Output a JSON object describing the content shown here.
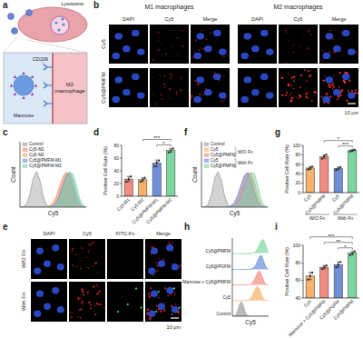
{
  "schematic": {
    "panel": "a",
    "lysosome": "Lysosome",
    "receptor": "CD206",
    "ligand": "Mannose",
    "cell": [
      "M2",
      "macrophage"
    ]
  },
  "images_b": {
    "panel": "b",
    "groups": [
      "M1 macrophages",
      "M2 macrophages"
    ],
    "channels": [
      "DAPI",
      "Cy5",
      "Merge"
    ],
    "rows": [
      "Cy5",
      "Cy5@PMFM"
    ],
    "scale_bar": "10 μm"
  },
  "images_e": {
    "panel": "e",
    "channels": [
      "DAPI",
      "Cy5",
      "FITC-Fn",
      "Merge"
    ],
    "rows": [
      "W/O Fn",
      "With Fn"
    ],
    "scale_bar": "10 μm"
  },
  "chart_data": [
    {
      "panel": "c",
      "type": "area",
      "xlabel": "Cy5",
      "ylabel": "Count",
      "x": [
        0,
        0.5,
        1,
        1.5,
        2,
        2.5,
        3,
        3.5,
        4,
        4.5,
        5,
        5.5,
        6,
        6.5,
        7,
        7.5,
        8,
        8.5,
        9,
        9.5,
        10
      ],
      "xlim": [
        0,
        10
      ],
      "ylim": [
        0,
        180
      ],
      "xticks": [],
      "yticks": [],
      "tick_labels": false,
      "legend": "upper left",
      "series": [
        {
          "name": "Control",
          "color": "#9e9e9e",
          "values": [
            0,
            1,
            8,
            35,
            80,
            98,
            75,
            30,
            6,
            1,
            0,
            0,
            0,
            0,
            0,
            0,
            0,
            0,
            0,
            0,
            0
          ]
        },
        {
          "name": "Cy5-M1",
          "color": "#f28b82",
          "values": [
            0,
            0,
            0,
            0,
            0,
            0,
            0,
            0,
            1,
            4,
            12,
            30,
            58,
            85,
            96,
            80,
            45,
            15,
            3,
            0,
            0
          ]
        },
        {
          "name": "Cy5-M2",
          "color": "#f6b26b",
          "values": [
            0,
            0,
            0,
            0,
            0,
            0,
            0,
            0,
            0,
            2,
            8,
            22,
            48,
            78,
            95,
            88,
            58,
            24,
            6,
            1,
            0
          ]
        },
        {
          "name": "Cy5@PMFM-M1",
          "color": "#6f8fd8",
          "values": [
            0,
            0,
            0,
            0,
            0,
            0,
            0,
            0,
            0,
            1,
            4,
            14,
            34,
            62,
            88,
            97,
            75,
            38,
            12,
            2,
            0
          ]
        },
        {
          "name": "Cy5@PMFM-M2",
          "color": "#7cd6a0",
          "values": [
            0,
            0,
            0,
            0,
            0,
            0,
            0,
            0,
            0,
            0,
            2,
            8,
            22,
            46,
            74,
            94,
            92,
            60,
            24,
            5,
            0
          ]
        }
      ]
    },
    {
      "panel": "d",
      "type": "bar",
      "ylabel": "Positive Cell Rate (%)",
      "categories": [
        "Cy5-M1",
        "Cy5-M2",
        "Cy5@PMFM-M1",
        "Cy5@PMFM-M2"
      ],
      "values": [
        27,
        26,
        52,
        72
      ],
      "errors": [
        4,
        3,
        5,
        3
      ],
      "points": [
        [
          23,
          27,
          31
        ],
        [
          23,
          26,
          29
        ],
        [
          47,
          53,
          56
        ],
        [
          69,
          72,
          75
        ]
      ],
      "colors": [
        "#f28b82",
        "#f6b26b",
        "#6f8fd8",
        "#7cd6a0"
      ],
      "ylim": [
        0,
        80
      ],
      "yticks": [
        0,
        20,
        40,
        60,
        80
      ],
      "annotations": [
        {
          "text": "*",
          "from": 2,
          "to": 3
        },
        {
          "text": "***",
          "from": 1,
          "to": 3
        }
      ]
    },
    {
      "panel": "f",
      "type": "area",
      "xlabel": "Cy5",
      "ylabel": "Count",
      "x": [
        0,
        0.5,
        1,
        1.5,
        2,
        2.5,
        3,
        3.5,
        4,
        4.5,
        5,
        5.5,
        6,
        6.5,
        7,
        7.5,
        8,
        8.5,
        9,
        9.5,
        10
      ],
      "xlim": [
        0,
        10
      ],
      "ylim": [
        0,
        180
      ],
      "xticks": [],
      "yticks": [],
      "tick_labels": false,
      "legend": "upper left",
      "legend_groups": [
        {
          "label": "W/O Fn",
          "series": [
            1,
            2
          ]
        },
        {
          "label": "With Fn",
          "series": [
            3,
            4
          ]
        }
      ],
      "series": [
        {
          "name": "Control",
          "color": "#9e9e9e",
          "values": [
            0,
            1,
            8,
            35,
            80,
            98,
            75,
            30,
            6,
            1,
            0,
            0,
            0,
            0,
            0,
            0,
            0,
            0,
            0,
            0,
            0
          ]
        },
        {
          "name": "Cy5",
          "color": "#f6b26b",
          "values": [
            0,
            0,
            0,
            0,
            0,
            0,
            0,
            0,
            1,
            4,
            12,
            30,
            58,
            85,
            96,
            80,
            45,
            15,
            3,
            0,
            0
          ]
        },
        {
          "name": "Cy5@PMFM",
          "color": "#f28b82",
          "values": [
            0,
            0,
            0,
            0,
            0,
            0,
            0,
            0,
            0,
            1,
            5,
            16,
            38,
            68,
            92,
            95,
            66,
            28,
            7,
            1,
            0
          ]
        },
        {
          "name": "Cy5",
          "color": "#6f8fd8",
          "values": [
            0,
            0,
            0,
            0,
            0,
            0,
            0,
            0,
            1,
            5,
            14,
            34,
            62,
            88,
            95,
            74,
            38,
            12,
            2,
            0,
            0
          ]
        },
        {
          "name": "Cy5@PMFM",
          "color": "#7cd6a0",
          "values": [
            0,
            0,
            0,
            0,
            0,
            0,
            0,
            0,
            0,
            0,
            2,
            7,
            18,
            40,
            70,
            94,
            93,
            58,
            20,
            4,
            0
          ]
        }
      ]
    },
    {
      "panel": "g",
      "type": "bar",
      "ylabel": "Positive Cell Rate (%)",
      "categories": [
        "Cy5",
        "Cy5@PMFM",
        "Cy5",
        "Cy5@PMFM"
      ],
      "values": [
        52,
        76,
        51,
        89
      ],
      "errors": [
        3,
        4,
        3,
        2
      ],
      "points": [
        [
          49,
          52,
          55
        ],
        [
          72,
          77,
          80
        ],
        [
          48,
          51,
          54
        ],
        [
          87,
          89,
          91
        ]
      ],
      "colors": [
        "#f6b26b",
        "#f28b82",
        "#6f8fd8",
        "#7cd6a0"
      ],
      "ylim": [
        0,
        100
      ],
      "yticks": [
        0,
        20,
        40,
        60,
        80,
        100
      ],
      "groups": [
        {
          "label": "W/O Fn",
          "from": 0,
          "to": 1
        },
        {
          "label": "With Fn",
          "from": 2,
          "to": 3
        }
      ],
      "annotations": [
        {
          "text": "***",
          "from": 2,
          "to": 3
        },
        {
          "text": "*",
          "from": 1,
          "to": 3
        }
      ]
    },
    {
      "panel": "h",
      "type": "ridgeline",
      "xlabel": "Cy5",
      "x": [
        0,
        0.5,
        1,
        1.5,
        2,
        2.5,
        3,
        3.5,
        4,
        4.5,
        5,
        5.5,
        6,
        6.5,
        7,
        7.5,
        8,
        8.5,
        9,
        9.5,
        10
      ],
      "xlim": [
        0,
        10
      ],
      "ylim": [
        0,
        100
      ],
      "xticks": [],
      "yticks": [],
      "tick_labels": false,
      "series": [
        {
          "name": "Cy5@PMFM",
          "color": "#7cd6a0",
          "values": [
            0,
            0,
            0,
            0,
            0,
            0,
            0,
            0,
            0,
            0,
            0,
            2,
            6,
            16,
            34,
            60,
            86,
            96,
            70,
            30,
            6
          ]
        },
        {
          "name": "Cy5@PGFM",
          "color": "#6f8fd8",
          "values": [
            0,
            0,
            0,
            0,
            0,
            0,
            0,
            0,
            0,
            0,
            1,
            5,
            14,
            32,
            60,
            88,
            95,
            66,
            28,
            6,
            1
          ]
        },
        {
          "name": "Mannose + Cy5@PMFM",
          "color": "#f28b82",
          "values": [
            0,
            0,
            0,
            0,
            0,
            0,
            0,
            0,
            0,
            1,
            4,
            12,
            30,
            58,
            86,
            96,
            72,
            36,
            10,
            2,
            0
          ]
        },
        {
          "name": "Cy5",
          "color": "#f6b26b",
          "values": [
            0,
            0,
            0,
            0,
            0,
            0,
            0,
            0,
            1,
            4,
            12,
            30,
            58,
            86,
            96,
            76,
            42,
            14,
            3,
            0,
            0
          ]
        },
        {
          "name": "Control",
          "color": "#9e9e9e",
          "values": [
            0,
            1,
            8,
            35,
            80,
            98,
            75,
            30,
            6,
            1,
            0,
            0,
            0,
            0,
            0,
            0,
            0,
            0,
            0,
            0,
            0
          ]
        }
      ]
    },
    {
      "panel": "i",
      "type": "bar",
      "ylabel": "Positive Cell Rate (%)",
      "categories": [
        "Cy5",
        "Mannose + Cy5@PMFM",
        "Cy5@PGFM",
        "Cy5@PMFM"
      ],
      "values": [
        65,
        75,
        78,
        91
      ],
      "errors": [
        4,
        2,
        3,
        2
      ],
      "points": [
        [
          61,
          65,
          69
        ],
        [
          73,
          75,
          77
        ],
        [
          75,
          78,
          81
        ],
        [
          89,
          91,
          93
        ]
      ],
      "colors": [
        "#f6b26b",
        "#f28b82",
        "#6f8fd8",
        "#7cd6a0"
      ],
      "ylim": [
        40,
        100
      ],
      "yticks": [
        40,
        60,
        80,
        100
      ],
      "annotations": [
        {
          "text": "*",
          "from": 2,
          "to": 3
        },
        {
          "text": "**",
          "from": 1,
          "to": 3
        },
        {
          "text": "***",
          "from": 0,
          "to": 3
        }
      ]
    }
  ]
}
